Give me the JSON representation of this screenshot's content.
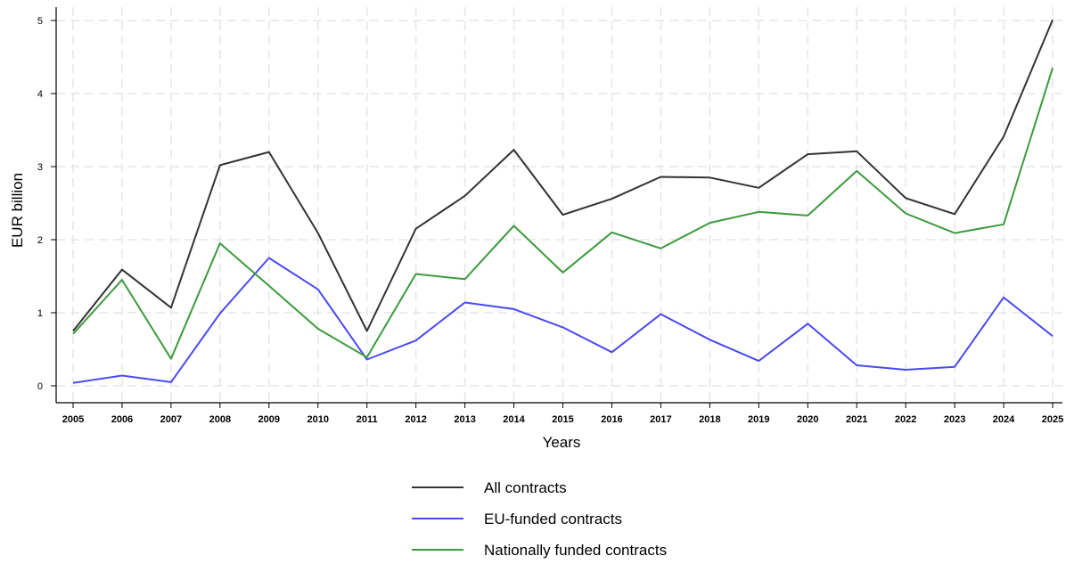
{
  "chart_data": {
    "type": "line",
    "title": "",
    "xlabel": "Years",
    "ylabel": "EUR billion",
    "x": [
      2005,
      2006,
      2007,
      2008,
      2009,
      2010,
      2011,
      2012,
      2013,
      2014,
      2015,
      2016,
      2017,
      2018,
      2019,
      2020,
      2021,
      2022,
      2023,
      2024,
      2025
    ],
    "xtick_labels": [
      "2005",
      "2006",
      "2007",
      "2008",
      "2009",
      "2010",
      "2011",
      "2012",
      "2013",
      "2014",
      "2015",
      "2016",
      "2017",
      "2018",
      "2019",
      "2020",
      "2021",
      "2022",
      "2023",
      "2024",
      "2025"
    ],
    "ylim": [
      0,
      5
    ],
    "yticks": [
      0,
      1,
      2,
      3,
      4,
      5
    ],
    "ytick_labels": [
      "0",
      "1",
      "2",
      "3",
      "4",
      "5"
    ],
    "grid": true,
    "legend_position": "bottom",
    "series": [
      {
        "name": "All contracts",
        "color": "#333333",
        "values": [
          0.75,
          1.59,
          1.07,
          3.02,
          3.2,
          2.09,
          0.75,
          2.15,
          2.6,
          3.23,
          2.34,
          2.56,
          2.86,
          2.85,
          2.71,
          3.17,
          3.21,
          2.57,
          2.35,
          3.41,
          5.01
        ]
      },
      {
        "name": "EU-funded contracts",
        "color": "#4a4af0",
        "values": [
          0.04,
          0.14,
          0.05,
          0.99,
          1.75,
          1.32,
          0.36,
          0.62,
          1.14,
          1.05,
          0.8,
          0.46,
          0.98,
          0.63,
          0.34,
          0.85,
          0.28,
          0.22,
          0.26,
          1.21,
          0.68
        ]
      },
      {
        "name": "Nationally funded contracts",
        "color": "#3d9a3d",
        "values": [
          0.71,
          1.45,
          0.37,
          1.95,
          1.37,
          0.78,
          0.39,
          1.53,
          1.46,
          2.19,
          1.55,
          2.1,
          1.88,
          2.23,
          2.38,
          2.33,
          2.94,
          2.36,
          2.09,
          2.21,
          4.35
        ]
      }
    ]
  }
}
